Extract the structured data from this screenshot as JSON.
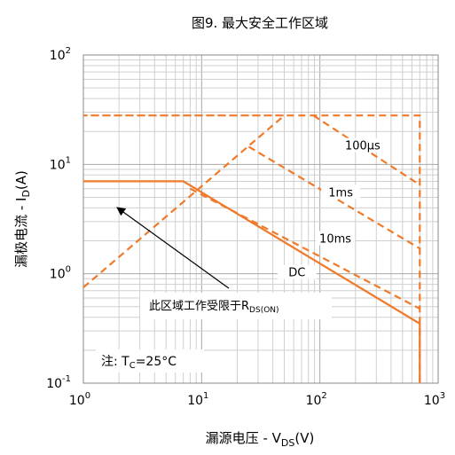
{
  "chart_data": {
    "type": "line",
    "title": "图9. 最大安全工作区域",
    "xlabel_main": "漏源电压 - V",
    "xlabel_sub": "DS",
    "xlabel_tail": "(V)",
    "ylabel_main": "漏极电流 - I",
    "ylabel_sub": "D",
    "ylabel_tail": "(A)",
    "x_scale": "log",
    "y_scale": "log",
    "xlim": [
      1,
      1000
    ],
    "ylim": [
      0.1,
      100
    ],
    "grid": true,
    "x_ticks": [
      {
        "value": 1,
        "base": "10",
        "exp": "0"
      },
      {
        "value": 10,
        "base": "10",
        "exp": "1"
      },
      {
        "value": 100,
        "base": "10",
        "exp": "2"
      },
      {
        "value": 1000,
        "base": "10",
        "exp": "3"
      }
    ],
    "y_ticks": [
      {
        "value": 0.1,
        "base": "10",
        "exp": "-1"
      },
      {
        "value": 1,
        "base": "10",
        "exp": "0"
      },
      {
        "value": 10,
        "base": "10",
        "exp": "1"
      },
      {
        "value": 100,
        "base": "10",
        "exp": "2"
      }
    ],
    "series": [
      {
        "name": "DC",
        "style": "solid",
        "color": "#f07a2a",
        "points": [
          [
            1,
            7.0
          ],
          [
            7,
            7.0
          ],
          [
            700,
            0.35
          ],
          [
            700,
            0.1
          ]
        ]
      },
      {
        "name": "10ms",
        "style": "dashed",
        "color": "#f07a2a",
        "points": [
          [
            8,
            6.0
          ],
          [
            700,
            0.48
          ]
        ]
      },
      {
        "name": "1ms",
        "style": "dashed",
        "color": "#f07a2a",
        "points": [
          [
            25,
            14.5
          ],
          [
            700,
            1.7
          ]
        ]
      },
      {
        "name": "100μs",
        "style": "dashed",
        "color": "#f07a2a",
        "points": [
          [
            88,
            28
          ],
          [
            700,
            6.5
          ]
        ]
      },
      {
        "name": "",
        "style": "dashed",
        "color": "#f07a2a",
        "points": [
          [
            1,
            0.75
          ],
          [
            50,
            28
          ],
          [
            1,
            28
          ],
          [
            700,
            28
          ],
          [
            700,
            0.1
          ]
        ]
      }
    ],
    "curve_labels": [
      {
        "text": "100μs",
        "x": 230,
        "y": 14.2
      },
      {
        "text": "1ms",
        "x": 150,
        "y": 5.3
      },
      {
        "text": "10ms",
        "x": 135,
        "y": 2.0
      },
      {
        "text": "DC",
        "x": 64,
        "y": 0.98
      }
    ],
    "annotations": {
      "region_main": "此区域工作受限于R",
      "region_sub": "DS(ON)",
      "note_main": "注: T",
      "note_sub": "C",
      "note_tail": "=25°C"
    }
  }
}
